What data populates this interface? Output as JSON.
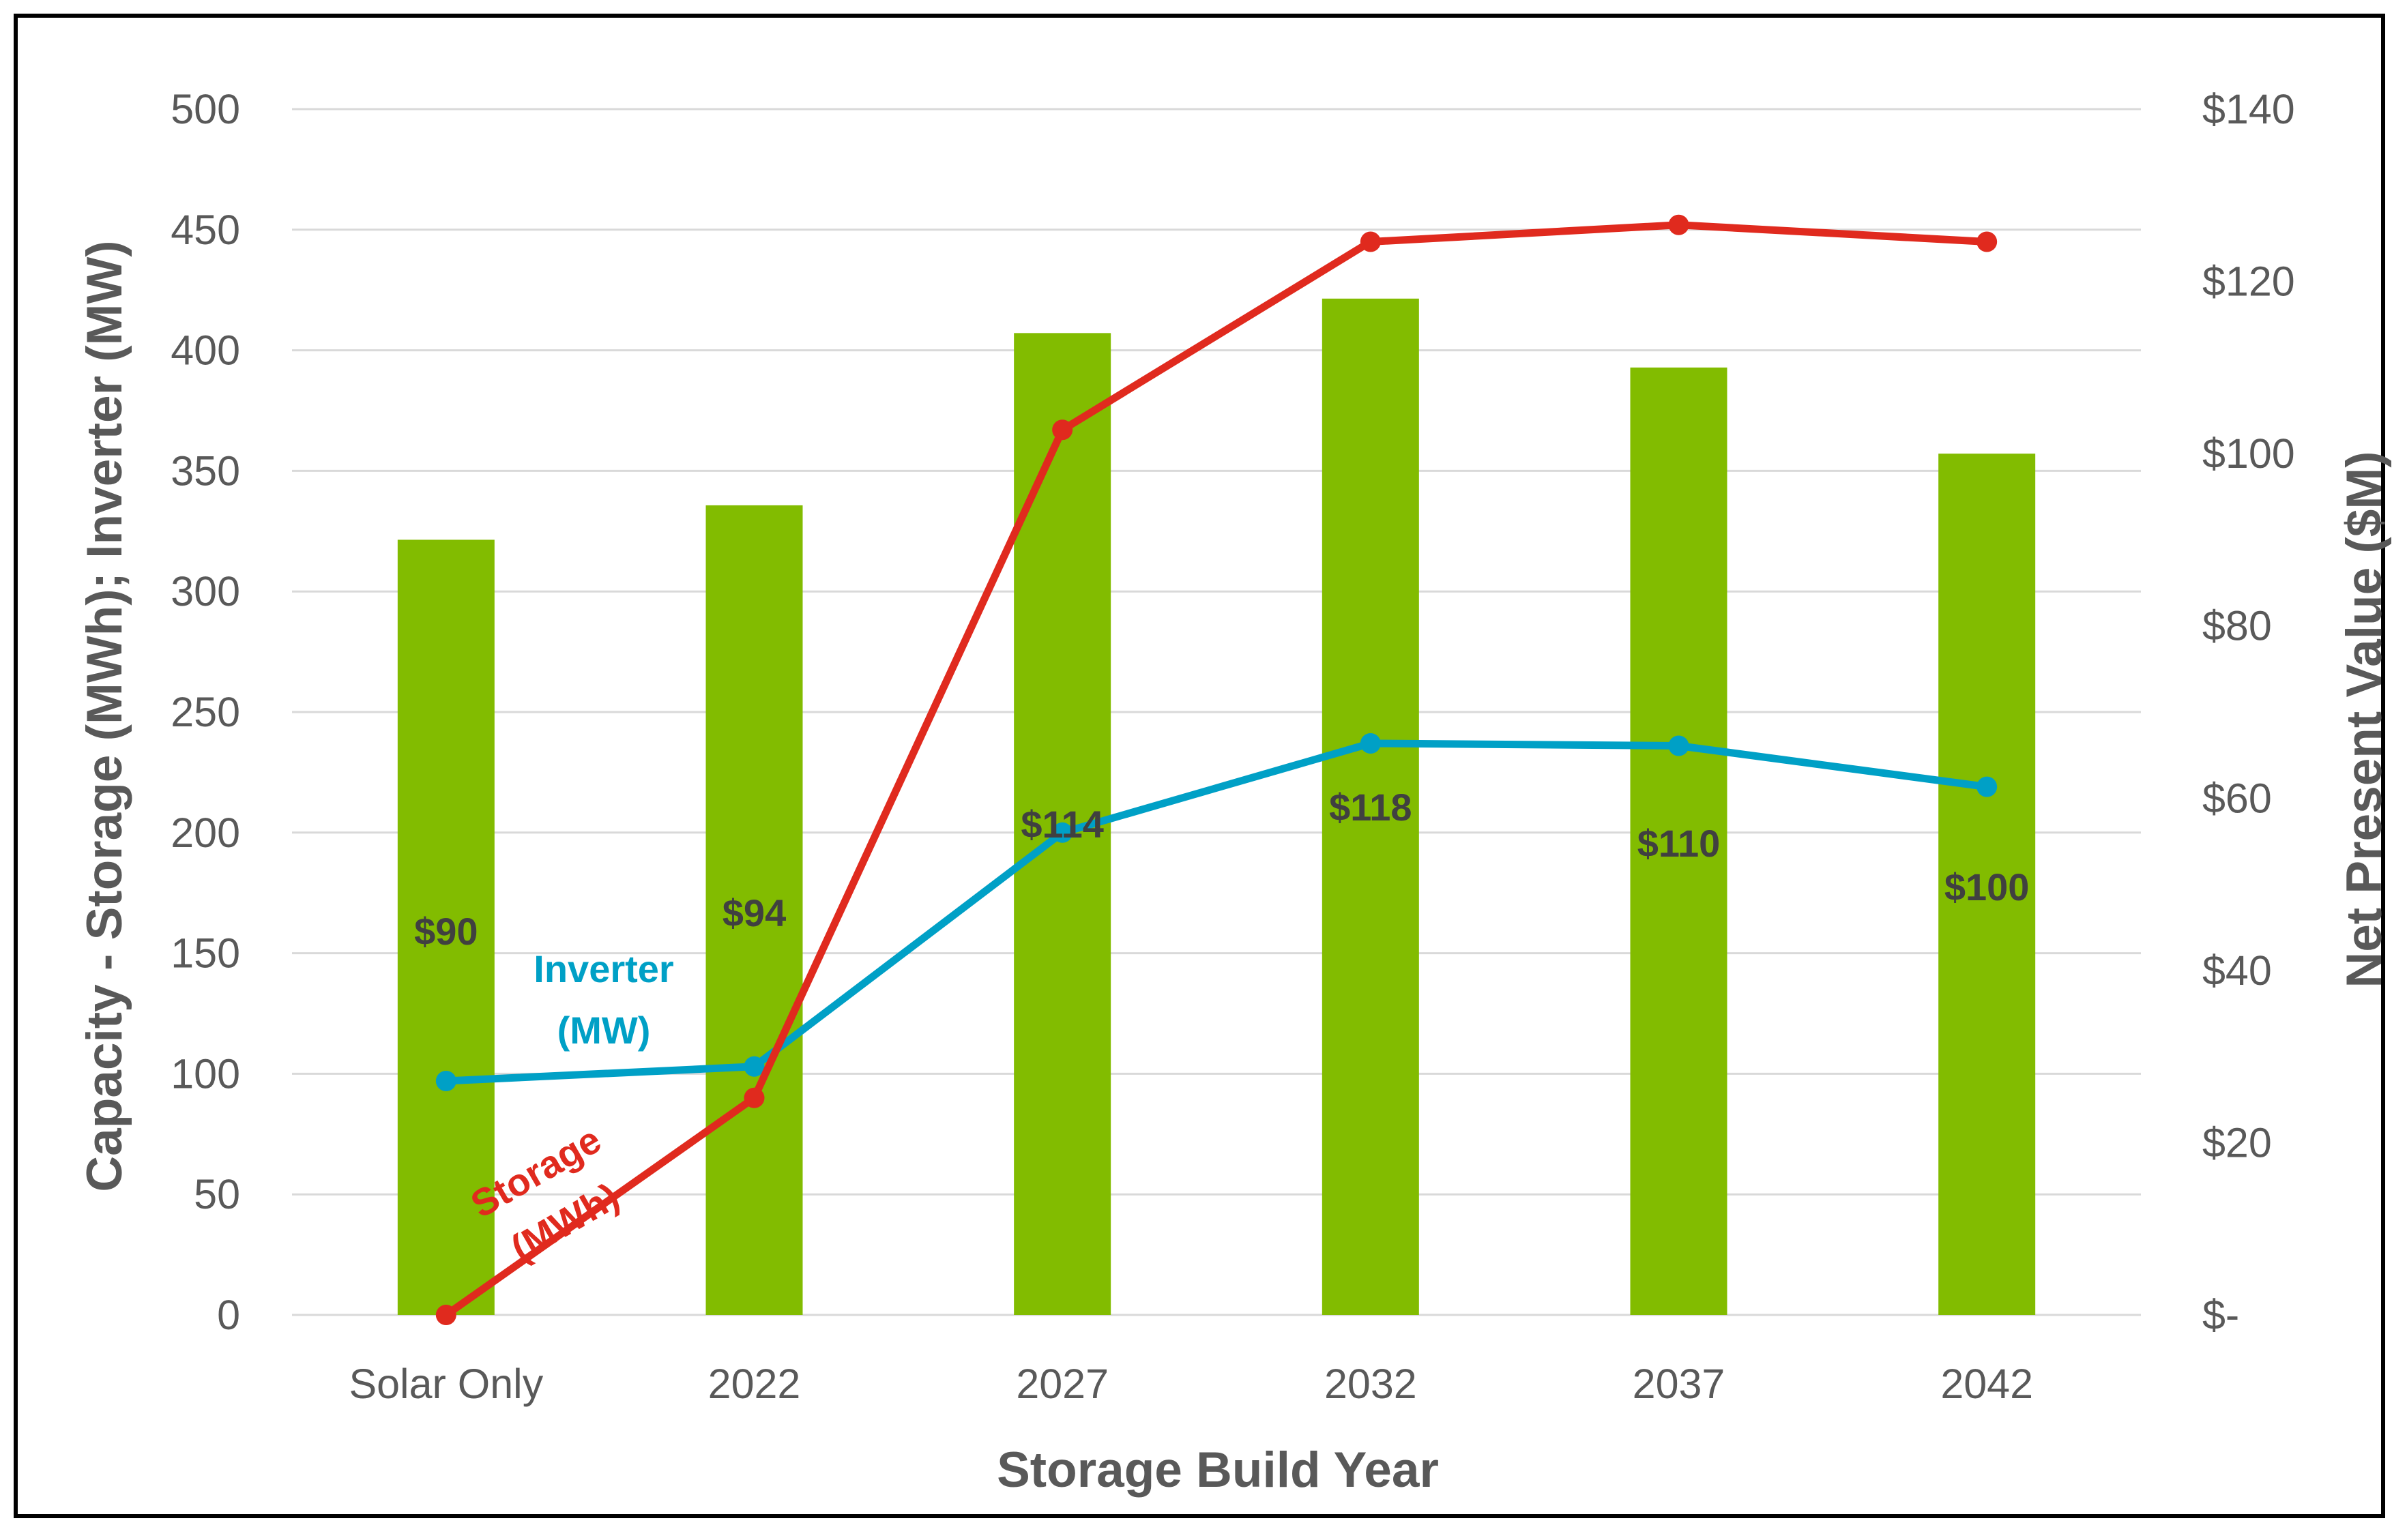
{
  "chart_data": {
    "type": "bar",
    "xlabel": "Storage Build Year",
    "ylabel": "Capacity - Storage (MWh); Inverter (MW)",
    "ylabel_right": "Net Present Value ($M)",
    "categories": [
      "Solar Only",
      "2022",
      "2027",
      "2032",
      "2037",
      "2042"
    ],
    "ylim": [
      0,
      500
    ],
    "yticks": [
      "0",
      "50",
      "100",
      "150",
      "200",
      "250",
      "300",
      "350",
      "400",
      "450",
      "500"
    ],
    "ylim_right": [
      0,
      140
    ],
    "yticks_right": [
      "$-",
      "$20",
      "$40",
      "$60",
      "$80",
      "$100",
      "$120",
      "$140"
    ],
    "grid": true,
    "series": [
      {
        "name": "Net Present Value ($M)",
        "type": "bar",
        "axis": "right",
        "color": "#82BC00",
        "values": [
          90,
          94,
          114,
          118,
          110,
          100
        ],
        "labels": [
          "$90",
          "$94",
          "$114",
          "$118",
          "$110",
          "$100"
        ]
      },
      {
        "name": "Inverter (MW)",
        "label_lines": [
          "Inverter",
          "(MW)"
        ],
        "type": "line",
        "axis": "left",
        "color": "#00A0C6",
        "values": [
          97,
          103,
          200,
          237,
          236,
          219
        ]
      },
      {
        "name": "Storage (MWh)",
        "label_lines": [
          "Storage",
          "(MWh)"
        ],
        "type": "line",
        "axis": "left",
        "color": "#E02A1E",
        "values": [
          0,
          90,
          367,
          445,
          452,
          445
        ]
      }
    ]
  }
}
